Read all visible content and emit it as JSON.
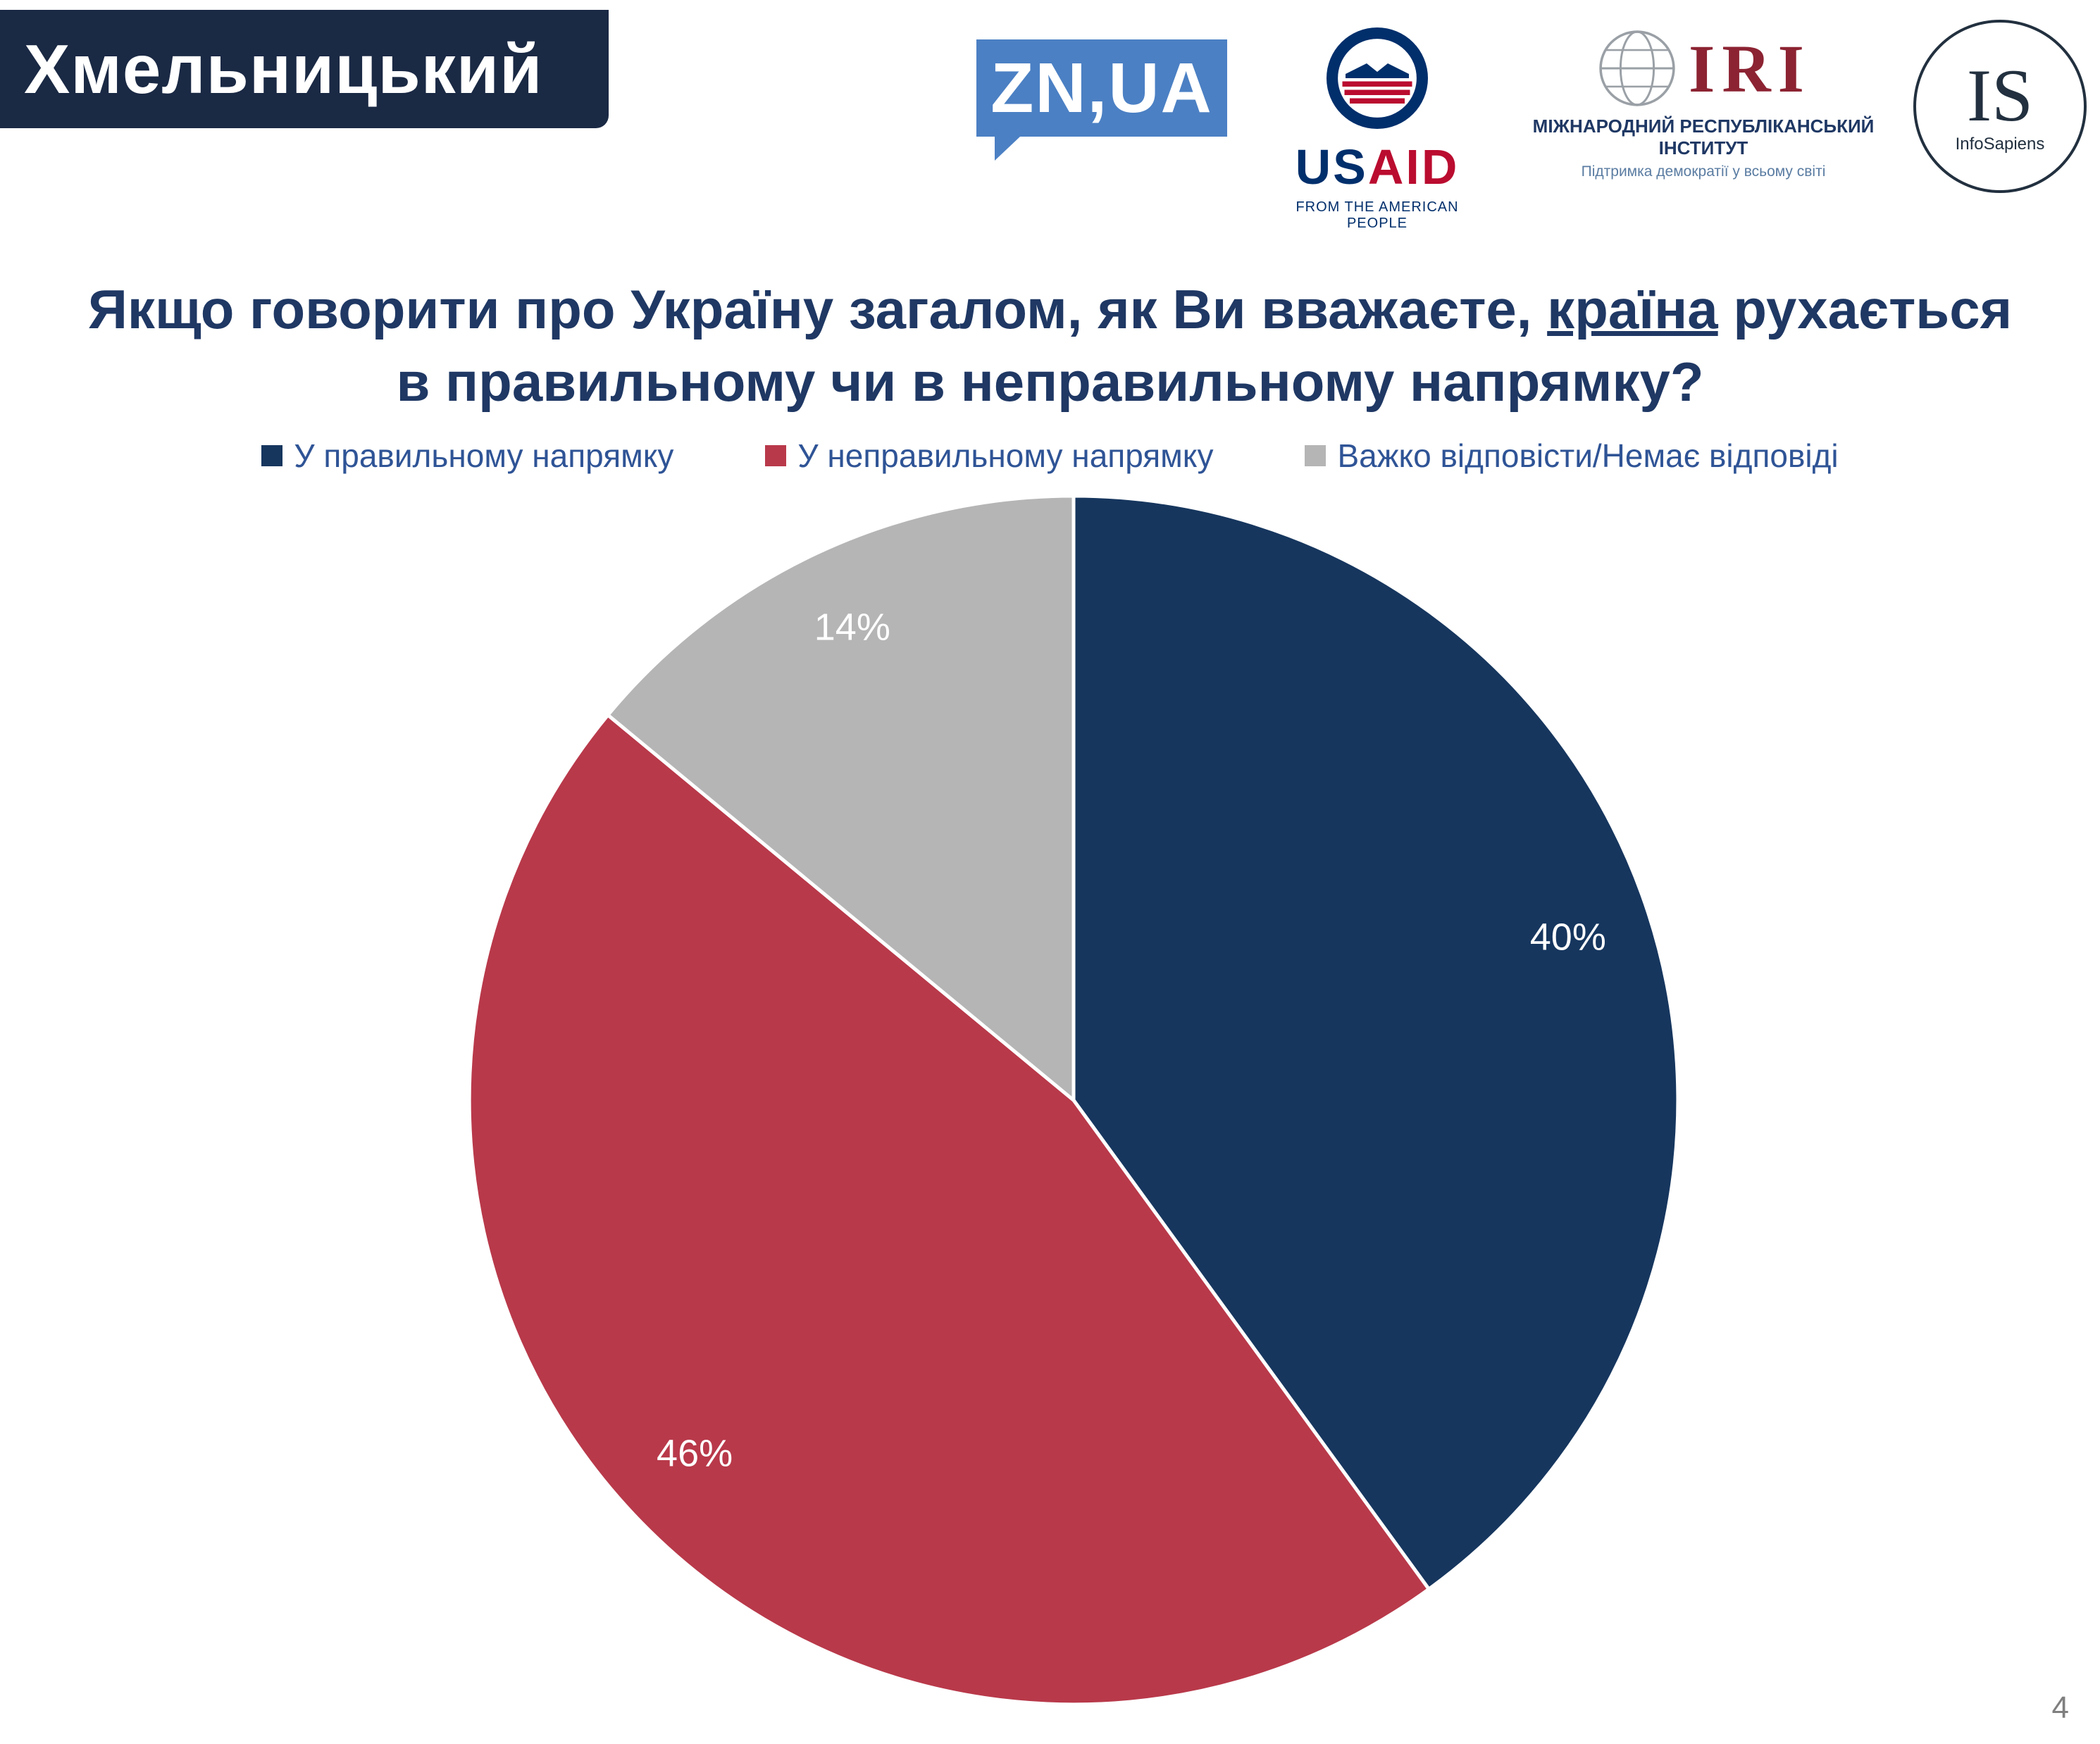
{
  "header": {
    "region_label": "Хмельницький"
  },
  "logos": {
    "znua": {
      "text": "ZN,UA"
    },
    "usaid": {
      "us": "US",
      "aid": "AID",
      "tagline": "FROM THE AMERICAN PEOPLE"
    },
    "iri": {
      "abbr": "IRI",
      "line1": "МІЖНАРОДНИЙ РЕСПУБЛІКАНСЬКИЙ ІНСТИТУТ",
      "line2": "Підтримка демократії у всьому світі"
    },
    "infosapiens": {
      "abbr": "IS",
      "name": "InfoSapiens"
    }
  },
  "title": {
    "part1": "Якщо говорити про Україну загалом, як Ви вважаєте, ",
    "underlined": "країна",
    "part2": " рухається",
    "line2": "в правильному чи в неправильному напрямку?"
  },
  "chart_data": {
    "type": "pie",
    "title": "Якщо говорити про Україну загалом, як Ви вважаєте, країна рухається в правильному чи в неправильному напрямку?",
    "categories": [
      "У правильному напрямку",
      "У неправильному напрямку",
      "Важко відповісти/Немає відповіді"
    ],
    "values": [
      40,
      46,
      14
    ],
    "labels": [
      "40%",
      "46%",
      "14%"
    ],
    "unit": "%",
    "colors": [
      "#16365e",
      "#b8394a",
      "#b5b5b5"
    ],
    "label_color": "#ffffff",
    "start_angle_deg": 0,
    "direction": "clockwise",
    "legend_position": "top"
  },
  "colors": {
    "page_bg": "#ffffff",
    "banner_navy": "#1a2944",
    "title_navy": "#1f3864",
    "legend_text": "#2f5496",
    "znua_blue": "#4b80c4",
    "usaid_navy": "#002f6c",
    "usaid_red": "#ba0c2f",
    "iri_maroon": "#8c2332",
    "page_number_gray": "#7f7f7f"
  },
  "page_number": "4"
}
